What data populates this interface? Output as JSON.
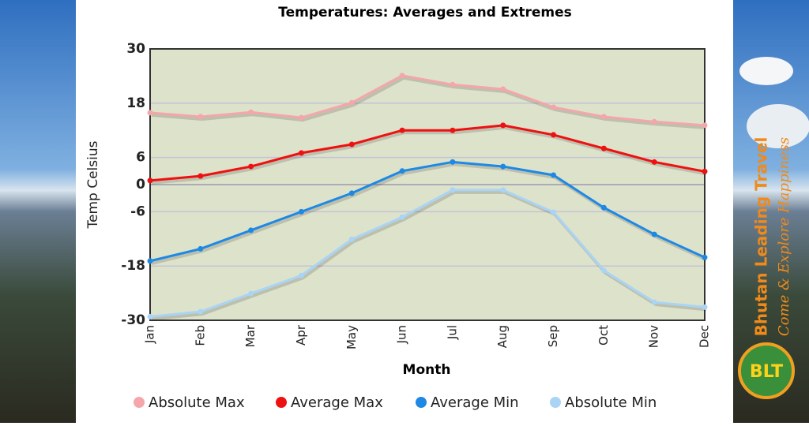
{
  "chart_data": {
    "type": "line",
    "title": "Temperatures: Averages and Extremes",
    "x_label": "Month",
    "y_label": "Temp Celsius",
    "categories": [
      "Jan",
      "Feb",
      "Mar",
      "Apr",
      "May",
      "Jun",
      "Jul",
      "Aug",
      "Sep",
      "Oct",
      "Nov",
      "Dec"
    ],
    "series": [
      {
        "name": "Absolute Max",
        "color": "#f4a6aa",
        "values": [
          15.9,
          15,
          16,
          14.8,
          18.1,
          24.1,
          22.1,
          21.1,
          17.1,
          15,
          13.9,
          13.1
        ]
      },
      {
        "name": "Average Max",
        "color": "#ee1111",
        "values": [
          0.9,
          1.9,
          4,
          7,
          8.9,
          12,
          12,
          13.1,
          11,
          8,
          5,
          2.9
        ]
      },
      {
        "name": "Average Min",
        "color": "#1e88e5",
        "values": [
          -16.9,
          -14.2,
          -10.1,
          -6,
          -1.9,
          3,
          5,
          4,
          2.1,
          -5.1,
          -11,
          -16.1
        ]
      },
      {
        "name": "Absolute Min",
        "color": "#a9d4f5",
        "values": [
          -29.2,
          -28.1,
          -24.1,
          -20.1,
          -12.1,
          -7.2,
          -1.2,
          -1.2,
          -6.1,
          -19,
          -26,
          -27.1
        ]
      }
    ],
    "ylim": [
      -30,
      30
    ],
    "yticks": [
      30,
      18,
      6,
      0,
      -6,
      -18,
      -30
    ],
    "grid": true,
    "legend": "bottom"
  },
  "branding": {
    "name": "Bhutan Leading Travel",
    "tagline": "Come & Explore Happiness",
    "logo": "BLT"
  }
}
